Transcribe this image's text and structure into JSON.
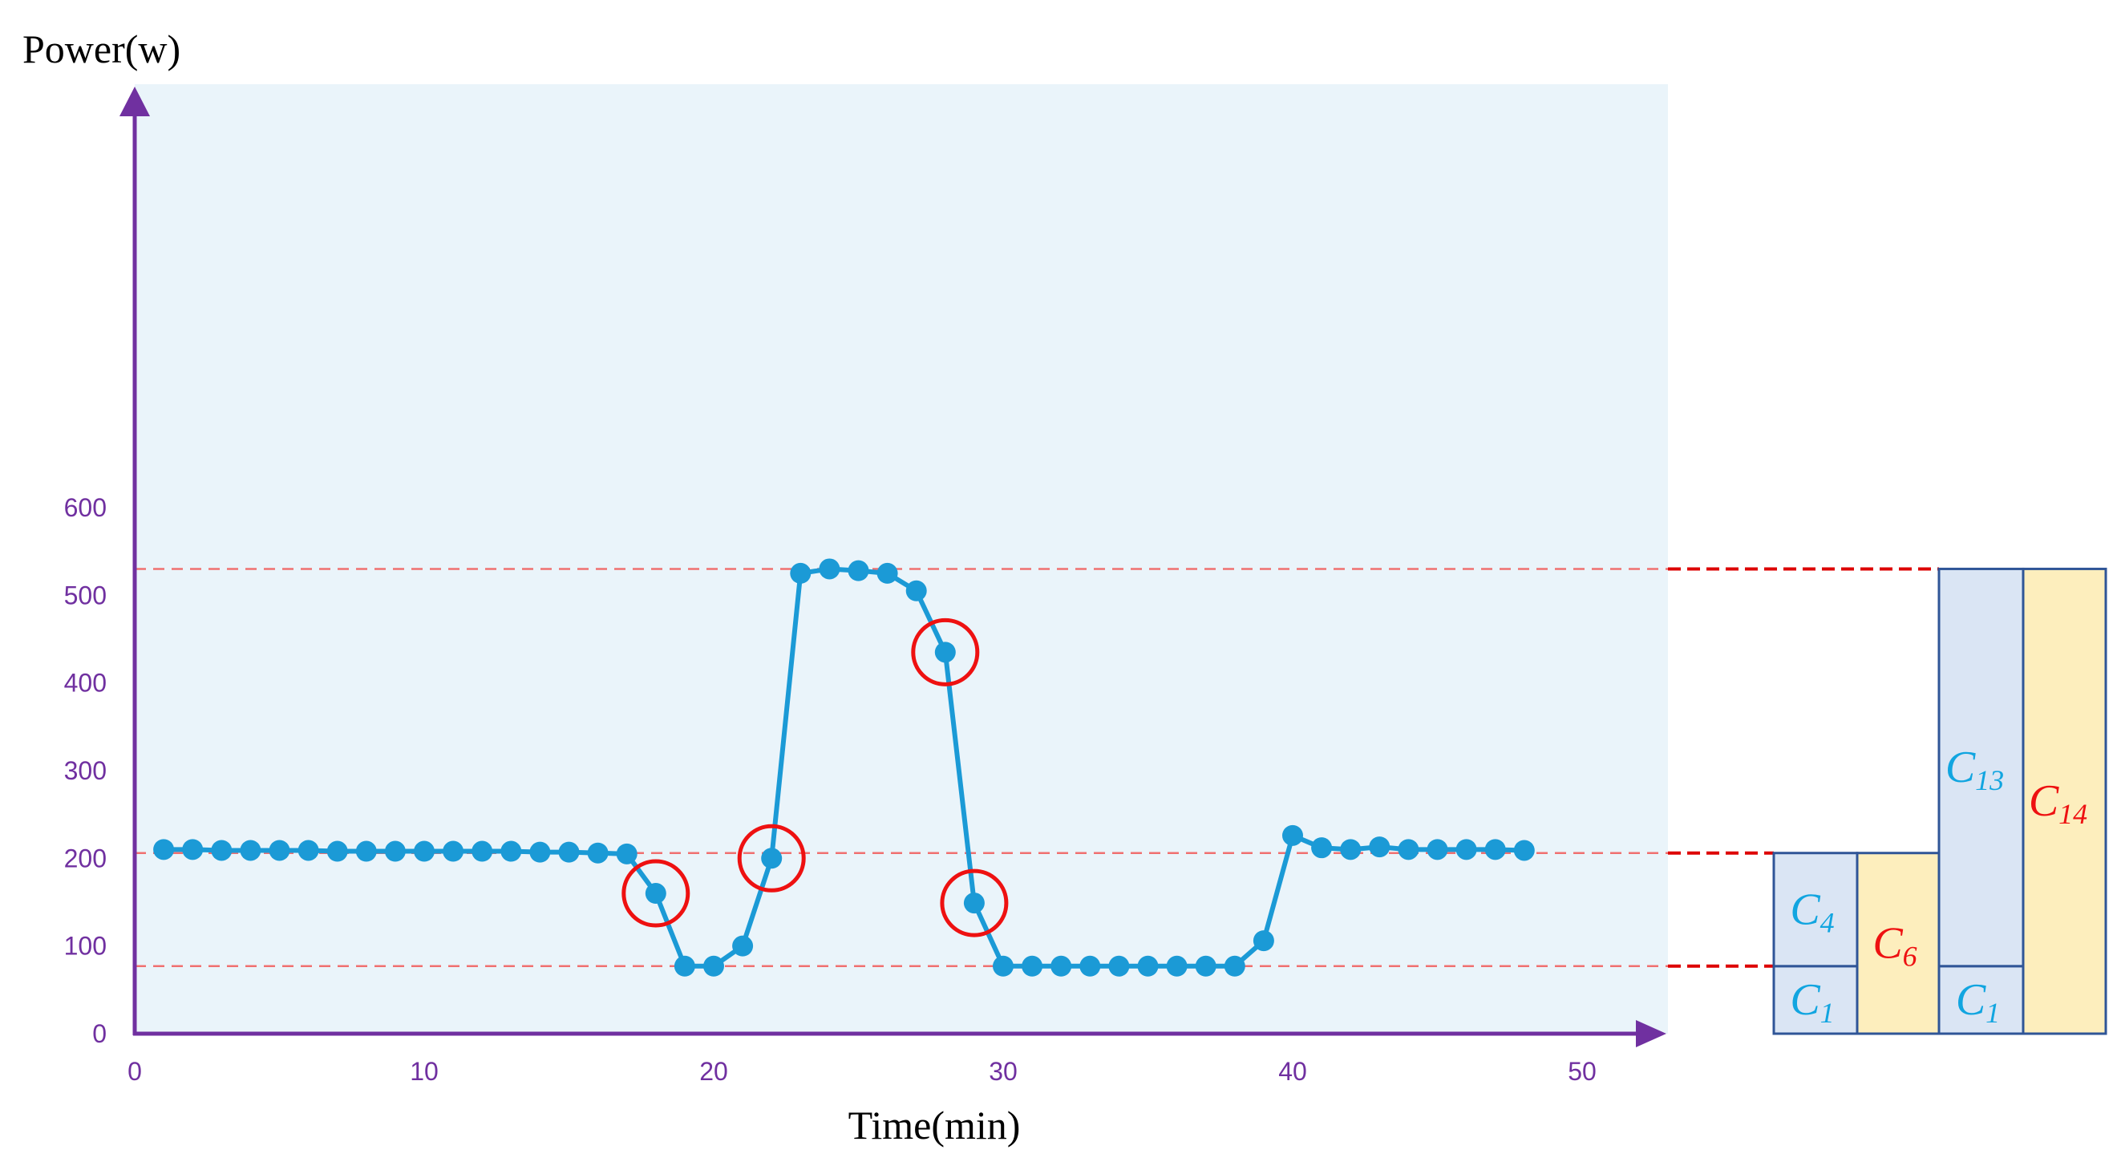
{
  "colors": {
    "plot_background": "#eaf4fa",
    "axis": "#7030a0",
    "tick_label": "#7030a0",
    "series_line": "#1b9ad6",
    "series_marker": "#1b9ad6",
    "highlight_circle": "#ee1111",
    "reference_line": "#f07070",
    "connector_line": "#dd0000",
    "blue_box_fill": "#dae5f4",
    "blue_box_stroke": "#2f5597",
    "yellow_box_fill": "#fdeebd",
    "label_cyan": "#11a5e0",
    "label_red": "#ee1111"
  },
  "chart_data": {
    "type": "line",
    "title": "",
    "ylabel": "Power(w)",
    "xlabel": "Time(min)",
    "xlim": [
      0,
      53
    ],
    "ylim": [
      0,
      600
    ],
    "xticks": [
      0,
      10,
      20,
      30,
      40,
      50
    ],
    "yticks": [
      0,
      100,
      200,
      300,
      400,
      500,
      600
    ],
    "grid": false,
    "series": [
      {
        "x": [
          1,
          2,
          3,
          4,
          5,
          6,
          7,
          8,
          9,
          10,
          11,
          12,
          13,
          14,
          15,
          16,
          17,
          18,
          19,
          20,
          21,
          22,
          23,
          24,
          25,
          26,
          27,
          28,
          29,
          30,
          31,
          32,
          33,
          34,
          35,
          36,
          37,
          38,
          39,
          40,
          41,
          42,
          43,
          44,
          45,
          46,
          47,
          48
        ],
        "values": [
          210,
          210,
          209,
          209,
          209,
          209,
          208,
          208,
          208,
          208,
          208,
          208,
          208,
          207,
          207,
          206,
          205,
          160,
          77,
          77,
          100,
          200,
          525,
          530,
          528,
          525,
          505,
          435,
          149,
          77,
          77,
          77,
          77,
          77,
          77,
          77,
          77,
          77,
          106,
          226,
          212,
          210,
          213,
          210,
          210,
          210,
          210,
          209
        ]
      }
    ],
    "highlighted_points": [
      {
        "x": 18,
        "y": 160
      },
      {
        "x": 22,
        "y": 200
      },
      {
        "x": 28,
        "y": 435
      },
      {
        "x": 29,
        "y": 149
      }
    ],
    "reference_lines": [
      77,
      206,
      530
    ],
    "composition_boxes": [
      {
        "label_base": "C",
        "label_sub": "1",
        "color": "cyan",
        "y_bottom": 0,
        "y_top": 77,
        "column": 0
      },
      {
        "label_base": "C",
        "label_sub": "4",
        "color": "cyan",
        "y_bottom": 77,
        "y_top": 206,
        "column": 0
      },
      {
        "label_base": "C",
        "label_sub": "6",
        "color": "red",
        "y_bottom": 0,
        "y_top": 206,
        "column": 1
      },
      {
        "label_base": "C",
        "label_sub": "1",
        "color": "cyan",
        "y_bottom": 0,
        "y_top": 77,
        "column": 2
      },
      {
        "label_base": "C",
        "label_sub": "13",
        "color": "cyan",
        "y_bottom": 77,
        "y_top": 530,
        "column": 2
      },
      {
        "label_base": "C",
        "label_sub": "14",
        "color": "red",
        "y_bottom": 0,
        "y_top": 530,
        "column": 3
      }
    ]
  }
}
